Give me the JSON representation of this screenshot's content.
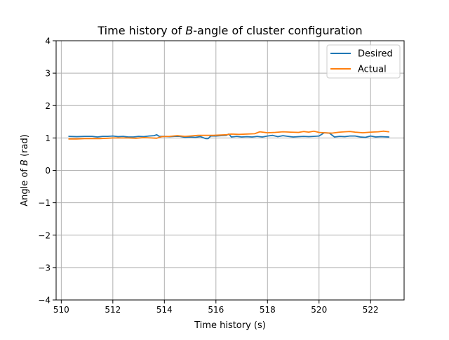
{
  "chart_data": {
    "type": "line",
    "title_prefix": "Time history of ",
    "title_var": "B",
    "title_suffix": "-angle of cluster configuration",
    "xlabel": "Time history (s)",
    "ylabel_prefix": "Angle of ",
    "ylabel_var": "B",
    "ylabel_suffix": " (rad)",
    "xlim": [
      509.8,
      523.3
    ],
    "ylim": [
      -4,
      4
    ],
    "xticks": [
      510,
      512,
      514,
      516,
      518,
      520,
      522
    ],
    "xtick_labels": [
      "510",
      "512",
      "514",
      "516",
      "518",
      "520",
      "522"
    ],
    "yticks": [
      -4,
      -3,
      -2,
      -1,
      0,
      1,
      2,
      3,
      4
    ],
    "ytick_labels": [
      "−4",
      "−3",
      "−2",
      "−1",
      "0",
      "1",
      "2",
      "3",
      "4"
    ],
    "grid": true,
    "legend_position": "top-right",
    "series": [
      {
        "name": "Desired",
        "color": "#1f77b4",
        "x": [
          510.3,
          510.6,
          510.9,
          511.2,
          511.4,
          511.6,
          511.8,
          512.0,
          512.2,
          512.4,
          512.6,
          512.8,
          513.0,
          513.2,
          513.4,
          513.6,
          513.7,
          513.8,
          514.0,
          514.2,
          514.4,
          514.6,
          514.8,
          515.0,
          515.2,
          515.4,
          515.6,
          515.7,
          515.8,
          516.0,
          516.2,
          516.4,
          516.5,
          516.6,
          516.8,
          517.0,
          517.2,
          517.4,
          517.6,
          517.8,
          518.0,
          518.2,
          518.4,
          518.6,
          518.8,
          519.0,
          519.2,
          519.4,
          519.6,
          519.8,
          520.0,
          520.2,
          520.4,
          520.6,
          520.8,
          521.0,
          521.2,
          521.4,
          521.6,
          521.8,
          522.0,
          522.2,
          522.4,
          522.7
        ],
        "y": [
          1.05,
          1.04,
          1.05,
          1.05,
          1.03,
          1.05,
          1.05,
          1.06,
          1.04,
          1.05,
          1.03,
          1.03,
          1.05,
          1.04,
          1.06,
          1.07,
          1.1,
          1.05,
          1.05,
          1.04,
          1.05,
          1.05,
          1.02,
          1.03,
          1.02,
          1.04,
          0.98,
          0.98,
          1.06,
          1.06,
          1.07,
          1.08,
          1.12,
          1.03,
          1.05,
          1.03,
          1.04,
          1.03,
          1.05,
          1.03,
          1.06,
          1.08,
          1.04,
          1.07,
          1.05,
          1.03,
          1.04,
          1.05,
          1.04,
          1.05,
          1.06,
          1.16,
          1.15,
          1.03,
          1.05,
          1.04,
          1.06,
          1.06,
          1.03,
          1.02,
          1.06,
          1.03,
          1.04,
          1.03
        ]
      },
      {
        "name": "Actual",
        "color": "#ff7f0e",
        "x": [
          510.3,
          510.6,
          510.9,
          511.2,
          511.5,
          511.8,
          512.0,
          512.3,
          512.6,
          512.9,
          513.2,
          513.5,
          513.7,
          513.9,
          514.2,
          514.5,
          514.8,
          515.0,
          515.3,
          515.6,
          515.9,
          516.2,
          516.4,
          516.6,
          516.9,
          517.2,
          517.5,
          517.7,
          518.0,
          518.3,
          518.6,
          518.9,
          519.2,
          519.4,
          519.6,
          519.8,
          520.0,
          520.2,
          520.5,
          520.8,
          521.0,
          521.2,
          521.4,
          521.7,
          522.0,
          522.3,
          522.5,
          522.7
        ],
        "y": [
          0.97,
          0.97,
          0.98,
          0.98,
          0.98,
          0.99,
          1.0,
          1.0,
          1.0,
          0.99,
          1.01,
          1.0,
          0.99,
          1.04,
          1.05,
          1.07,
          1.05,
          1.06,
          1.08,
          1.08,
          1.08,
          1.09,
          1.1,
          1.12,
          1.11,
          1.12,
          1.13,
          1.19,
          1.16,
          1.17,
          1.19,
          1.18,
          1.17,
          1.2,
          1.18,
          1.21,
          1.17,
          1.16,
          1.15,
          1.18,
          1.19,
          1.2,
          1.18,
          1.16,
          1.18,
          1.19,
          1.21,
          1.19
        ]
      }
    ]
  }
}
